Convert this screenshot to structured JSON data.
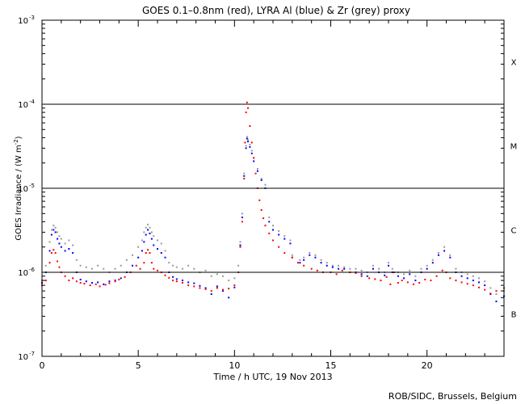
{
  "chart_data": {
    "type": "scatter",
    "title": "GOES 0.1–0.8nm (red), LYRA Al (blue) & Zr (grey) proxy",
    "xlabel": "Time / h UTC, 19 Nov 2013",
    "ylabel": "GOES Irradiance / (W m",
    "ylabel_sup": "-2",
    "ylabel_close": ")",
    "credit": "ROB/SIDC, Brussels, Belgium",
    "xlim": [
      0,
      24
    ],
    "ylim": [
      1e-07,
      0.001
    ],
    "yscale": "log",
    "x_ticks": [
      0,
      5,
      10,
      15,
      20
    ],
    "x_tick_labels": [
      "0",
      "5",
      "10",
      "15",
      "20"
    ],
    "y_ticks": [
      {
        "value": 0.001,
        "base": "10",
        "exp": "-3"
      },
      {
        "value": 0.0001,
        "base": "10",
        "exp": "-4"
      },
      {
        "value": 1e-05,
        "base": "10",
        "exp": "-5"
      },
      {
        "value": 1e-06,
        "base": "10",
        "exp": "-6"
      },
      {
        "value": 1e-07,
        "base": "10",
        "exp": "-7"
      }
    ],
    "flare_classes": [
      {
        "label": "X",
        "value": 0.00032
      },
      {
        "label": "M",
        "value": 3.2e-05
      },
      {
        "label": "C",
        "value": 3.2e-06
      },
      {
        "label": "B",
        "value": 3.2e-07
      }
    ],
    "threshold_lines": [
      0.0001,
      1e-05,
      1e-06
    ],
    "colors": {
      "goes": "#ff0000",
      "lyra_al": "#0000ff",
      "lyra_zr": "#999999",
      "axes": "#000000"
    },
    "series": [
      {
        "name": "GOES",
        "color": "#ff0000",
        "x": [
          0.0,
          0.2,
          0.4,
          0.5,
          0.6,
          0.7,
          0.8,
          0.9,
          1.0,
          1.2,
          1.4,
          1.6,
          1.8,
          2.0,
          2.2,
          2.5,
          2.8,
          3.0,
          3.3,
          3.5,
          3.8,
          4.0,
          4.3,
          4.6,
          4.9,
          5.1,
          5.3,
          5.4,
          5.5,
          5.6,
          5.7,
          5.8,
          6.0,
          6.2,
          6.4,
          6.6,
          6.8,
          7.0,
          7.3,
          7.6,
          7.9,
          8.2,
          8.5,
          8.8,
          9.1,
          9.4,
          9.7,
          10.0,
          10.2,
          10.3,
          10.4,
          10.5,
          10.55,
          10.6,
          10.65,
          10.7,
          10.8,
          10.9,
          11.0,
          11.1,
          11.2,
          11.3,
          11.4,
          11.5,
          11.6,
          11.8,
          12.0,
          12.3,
          12.6,
          13.0,
          13.3,
          13.6,
          14.0,
          14.3,
          14.6,
          15.0,
          15.3,
          15.6,
          16.0,
          16.3,
          16.6,
          17.0,
          17.3,
          17.6,
          17.9,
          18.1,
          18.3,
          18.5,
          18.7,
          19.0,
          19.3,
          19.6,
          19.9,
          20.2,
          20.5,
          20.8,
          21.0,
          21.2,
          21.5,
          21.8,
          22.1,
          22.4,
          22.7,
          23.0,
          23.3,
          23.6,
          24.0
        ],
        "y": [
          7e-07,
          8e-07,
          1.3e-06,
          1.7e-06,
          1.85e-06,
          1.7e-06,
          1.35e-06,
          1.15e-06,
          1e-06,
          9e-07,
          8e-07,
          8.5e-07,
          7.8e-07,
          7.5e-07,
          7.3e-07,
          7e-07,
          7.2e-07,
          6.8e-07,
          7.1e-07,
          7.4e-07,
          7.8e-07,
          8.2e-07,
          8.8e-07,
          1e-06,
          1.2e-06,
          1.1e-06,
          1.3e-06,
          1.7e-06,
          1.85e-06,
          1.7e-06,
          1.3e-06,
          1.1e-06,
          1.05e-06,
          1e-06,
          9.2e-07,
          8.6e-07,
          8e-07,
          7.8e-07,
          7.5e-07,
          7e-07,
          6.8e-07,
          6.5e-07,
          6.3e-07,
          6e-07,
          6.5e-07,
          6.2e-07,
          6.4e-07,
          7e-07,
          1e-06,
          2e-06,
          4e-06,
          1.3e-05,
          3.5e-05,
          8e-05,
          0.000105,
          9e-05,
          5.5e-05,
          3.5e-05,
          2.3e-05,
          1.5e-05,
          1e-05,
          7.2e-06,
          5.5e-06,
          4.4e-06,
          3.6e-06,
          2.9e-06,
          2.4e-06,
          2e-06,
          1.7e-06,
          1.5e-06,
          1.3e-06,
          1.2e-06,
          1.1e-06,
          1.05e-06,
          1e-06,
          1e-06,
          9.5e-07,
          1.05e-06,
          1e-06,
          9.8e-07,
          9e-07,
          8.5e-07,
          8.3e-07,
          8e-07,
          8.8e-07,
          7.2e-07,
          1e-06,
          7.5e-07,
          8e-07,
          7.6e-07,
          7.2e-07,
          7.5e-07,
          8.2e-07,
          8e-07,
          9e-07,
          1.05e-06,
          1e-06,
          8.5e-07,
          8e-07,
          7.6e-07,
          7.3e-07,
          7e-07,
          6.6e-07,
          6.2e-07,
          5.6e-07,
          6e-07,
          6.5e-07
        ]
      },
      {
        "name": "LYRA Al",
        "color": "#0000ff",
        "x": [
          0.0,
          0.2,
          0.4,
          0.5,
          0.6,
          0.7,
          0.8,
          0.9,
          1.0,
          1.2,
          1.4,
          1.6,
          1.8,
          2.0,
          2.3,
          2.6,
          2.9,
          3.2,
          3.5,
          3.8,
          4.1,
          4.4,
          4.7,
          5.0,
          5.2,
          5.3,
          5.4,
          5.5,
          5.6,
          5.7,
          5.8,
          6.0,
          6.2,
          6.4,
          6.6,
          6.8,
          7.0,
          7.3,
          7.6,
          7.9,
          8.2,
          8.5,
          8.8,
          9.1,
          9.4,
          9.7,
          10.0,
          10.2,
          10.3,
          10.4,
          10.5,
          10.6,
          10.65,
          10.7,
          10.8,
          10.9,
          11.0,
          11.2,
          11.4,
          11.6,
          11.8,
          12.0,
          12.3,
          12.6,
          12.9,
          13.0,
          13.4,
          13.6,
          13.9,
          14.2,
          14.5,
          14.8,
          15.1,
          15.4,
          15.7,
          16.0,
          16.3,
          16.6,
          16.9,
          17.2,
          17.5,
          17.8,
          18.0,
          18.2,
          18.5,
          18.8,
          19.1,
          19.4,
          19.7,
          20.0,
          20.3,
          20.6,
          20.9,
          21.2,
          21.5,
          21.8,
          22.1,
          22.4,
          22.7,
          23.0,
          23.3,
          23.6,
          24.0
        ],
        "y": [
          7.5e-07,
          1e-06,
          1.8e-06,
          2.8e-06,
          3.2e-06,
          3e-06,
          2.5e-06,
          2.2e-06,
          2e-06,
          1.8e-06,
          1.9e-06,
          1.7e-06,
          1e-06,
          8.2e-07,
          7.8e-07,
          7.5e-07,
          7.6e-07,
          7.2e-07,
          7.8e-07,
          8e-07,
          8.5e-07,
          1e-06,
          1.2e-06,
          1.5e-06,
          1.8e-06,
          2.3e-06,
          2.8e-06,
          3.2e-06,
          2.9e-06,
          2.5e-06,
          2.1e-06,
          1.9e-06,
          1.7e-06,
          1.5e-06,
          1e-06,
          8.8e-07,
          8.3e-07,
          8e-07,
          7.6e-07,
          7.4e-07,
          6.9e-07,
          6.5e-07,
          5.5e-07,
          6.8e-07,
          6e-07,
          5e-07,
          6.6e-07,
          1e-06,
          2.1e-06,
          4.5e-06,
          1.4e-05,
          3e-05,
          3.9e-05,
          3.6e-05,
          3.1e-05,
          2.6e-05,
          2.1e-05,
          1.6e-05,
          1.25e-05,
          1e-05,
          4e-06,
          3.2e-06,
          2.8e-06,
          2.5e-06,
          2.2e-06,
          1.5e-06,
          1.3e-06,
          1.4e-06,
          1.6e-06,
          1.5e-06,
          1.3e-06,
          1.2e-06,
          1.15e-06,
          1.1e-06,
          1.1e-06,
          1e-06,
          1e-06,
          9.5e-07,
          9e-07,
          1.1e-06,
          1e-06,
          9.2e-07,
          1.2e-06,
          1e-06,
          9e-07,
          8.5e-07,
          9.5e-07,
          8e-07,
          1e-06,
          1.1e-06,
          1.3e-06,
          1.6e-06,
          1.8e-06,
          1.5e-06,
          1e-06,
          9e-07,
          8.5e-07,
          8e-07,
          7.6e-07,
          7e-07,
          5.5e-07,
          4.5e-07,
          5.2e-07
        ]
      },
      {
        "name": "LYRA Zr",
        "color": "#999999",
        "x": [
          0.0,
          0.2,
          0.4,
          0.5,
          0.6,
          0.7,
          0.8,
          0.9,
          1.0,
          1.2,
          1.4,
          1.6,
          1.8,
          2.0,
          2.3,
          2.6,
          2.9,
          3.2,
          3.5,
          3.8,
          4.1,
          4.4,
          4.7,
          5.0,
          5.2,
          5.3,
          5.4,
          5.5,
          5.6,
          5.7,
          5.8,
          6.0,
          6.2,
          6.4,
          6.6,
          6.8,
          7.0,
          7.3,
          7.6,
          7.9,
          8.2,
          8.5,
          8.8,
          9.1,
          9.4,
          9.7,
          10.0,
          10.2,
          10.3,
          10.4,
          10.5,
          10.6,
          10.65,
          10.7,
          10.8,
          10.9,
          11.0,
          11.2,
          11.4,
          11.6,
          11.8,
          12.0,
          12.3,
          12.6,
          12.9,
          13.0,
          13.4,
          13.6,
          13.9,
          14.2,
          14.5,
          14.8,
          15.1,
          15.4,
          15.7,
          16.0,
          16.3,
          16.6,
          16.9,
          17.2,
          17.5,
          17.8,
          18.0,
          18.2,
          18.5,
          18.8,
          19.1,
          19.4,
          19.7,
          20.0,
          20.3,
          20.6,
          20.9,
          21.2,
          21.5,
          21.8,
          22.1,
          22.4,
          22.7,
          23.0,
          23.3,
          23.6,
          24.0
        ],
        "y": [
          8e-07,
          1.2e-06,
          2.3e-06,
          3.2e-06,
          3.6e-06,
          3.4e-06,
          3e-06,
          2.7e-06,
          2.5e-06,
          2.2e-06,
          2.4e-06,
          2.1e-06,
          1.4e-06,
          1.2e-06,
          1.15e-06,
          1.1e-06,
          1.2e-06,
          1.1e-06,
          1e-06,
          1.1e-06,
          1.2e-06,
          1.4e-06,
          1.6e-06,
          2e-06,
          2.4e-06,
          3e-06,
          3.4e-06,
          3.7e-06,
          3.4e-06,
          3e-06,
          2.7e-06,
          2.4e-06,
          2.2e-06,
          1.8e-06,
          1.3e-06,
          1.2e-06,
          1.15e-06,
          1.1e-06,
          1.2e-06,
          1.1e-06,
          1e-06,
          1.05e-06,
          9e-07,
          9.5e-07,
          9e-07,
          8e-07,
          8.5e-07,
          1.2e-06,
          2.3e-06,
          5e-06,
          1.5e-05,
          3.2e-05,
          4.1e-05,
          3.8e-05,
          3.3e-05,
          2.8e-05,
          2.3e-05,
          1.7e-05,
          1.3e-05,
          1.1e-05,
          4.5e-06,
          3.6e-06,
          3.1e-06,
          2.7e-06,
          2.4e-06,
          1.6e-06,
          1.4e-06,
          1.5e-06,
          1.7e-06,
          1.6e-06,
          1.4e-06,
          1.3e-06,
          1.2e-06,
          1.2e-06,
          1.15e-06,
          1.1e-06,
          1.1e-06,
          1.05e-06,
          1e-06,
          1.2e-06,
          1.1e-06,
          1e-06,
          1.3e-06,
          1.1e-06,
          1e-06,
          9.5e-07,
          1.05e-06,
          9e-07,
          1.1e-06,
          1.2e-06,
          1.4e-06,
          1.7e-06,
          2e-06,
          1.6e-06,
          1.1e-06,
          1e-06,
          9.5e-07,
          9e-07,
          8.5e-07,
          7.8e-07,
          6.5e-07,
          5.5e-07,
          6e-07
        ]
      }
    ]
  }
}
